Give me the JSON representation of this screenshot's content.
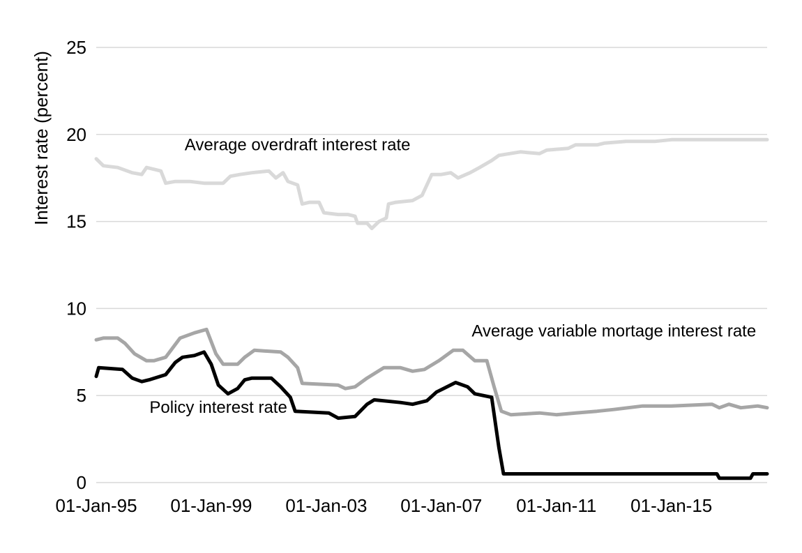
{
  "chart_data": {
    "type": "line",
    "ylabel": "Interest rate (percent)",
    "xlabel": "",
    "ylim": [
      0,
      25
    ],
    "yticks": [
      0,
      5,
      10,
      15,
      20,
      25
    ],
    "xlim": [
      "1995-01-01",
      "2018-05-01"
    ],
    "xticks": [
      {
        "date": "1995-01-01",
        "label": "01-Jan-95"
      },
      {
        "date": "1999-01-01",
        "label": "01-Jan-99"
      },
      {
        "date": "2003-01-01",
        "label": "01-Jan-03"
      },
      {
        "date": "2007-01-01",
        "label": "01-Jan-07"
      },
      {
        "date": "2011-01-01",
        "label": "01-Jan-11"
      },
      {
        "date": "2015-01-01",
        "label": "01-Jan-15"
      }
    ],
    "grid": true,
    "legend": "none",
    "series": [
      {
        "name": "Average overdraft interest rate",
        "color": "#d9d9d9",
        "points": [
          [
            "1995-01-01",
            18.6
          ],
          [
            "1995-04-01",
            18.2
          ],
          [
            "1995-10-01",
            18.1
          ],
          [
            "1996-04-01",
            17.8
          ],
          [
            "1996-08-01",
            17.7
          ],
          [
            "1996-10-01",
            18.1
          ],
          [
            "1997-01-01",
            18.0
          ],
          [
            "1997-04-01",
            17.9
          ],
          [
            "1997-06-01",
            17.2
          ],
          [
            "1997-10-01",
            17.3
          ],
          [
            "1998-04-01",
            17.3
          ],
          [
            "1998-10-01",
            17.2
          ],
          [
            "1999-06-01",
            17.2
          ],
          [
            "1999-09-01",
            17.6
          ],
          [
            "2000-01-01",
            17.7
          ],
          [
            "2000-06-01",
            17.8
          ],
          [
            "2001-01-01",
            17.9
          ],
          [
            "2001-04-01",
            17.5
          ],
          [
            "2001-07-01",
            17.8
          ],
          [
            "2001-09-01",
            17.3
          ],
          [
            "2002-01-01",
            17.1
          ],
          [
            "2002-03-01",
            16.0
          ],
          [
            "2002-06-01",
            16.1
          ],
          [
            "2002-10-01",
            16.1
          ],
          [
            "2002-12-01",
            15.5
          ],
          [
            "2003-06-01",
            15.4
          ],
          [
            "2003-10-01",
            15.4
          ],
          [
            "2004-01-01",
            15.3
          ],
          [
            "2004-02-01",
            14.9
          ],
          [
            "2004-06-01",
            14.9
          ],
          [
            "2004-08-01",
            14.6
          ],
          [
            "2004-11-01",
            15.0
          ],
          [
            "2005-02-01",
            15.2
          ],
          [
            "2005-03-01",
            16.0
          ],
          [
            "2005-06-01",
            16.1
          ],
          [
            "2006-01-01",
            16.2
          ],
          [
            "2006-05-01",
            16.5
          ],
          [
            "2006-09-01",
            17.7
          ],
          [
            "2007-01-01",
            17.7
          ],
          [
            "2007-05-01",
            17.8
          ],
          [
            "2007-08-01",
            17.5
          ],
          [
            "2008-01-01",
            17.8
          ],
          [
            "2008-05-01",
            18.1
          ],
          [
            "2008-10-01",
            18.5
          ],
          [
            "2009-01-01",
            18.8
          ],
          [
            "2009-10-01",
            19.0
          ],
          [
            "2010-06-01",
            18.9
          ],
          [
            "2010-09-01",
            19.1
          ],
          [
            "2011-06-01",
            19.2
          ],
          [
            "2011-09-01",
            19.4
          ],
          [
            "2012-06-01",
            19.4
          ],
          [
            "2012-09-01",
            19.5
          ],
          [
            "2013-06-01",
            19.6
          ],
          [
            "2014-01-01",
            19.6
          ],
          [
            "2014-06-01",
            19.6
          ],
          [
            "2015-01-01",
            19.7
          ],
          [
            "2016-06-01",
            19.7
          ],
          [
            "2018-05-01",
            19.7
          ]
        ]
      },
      {
        "name": "Average variable mortage interest rate",
        "color": "#a6a6a6",
        "points": [
          [
            "1995-01-01",
            8.2
          ],
          [
            "1995-04-01",
            8.3
          ],
          [
            "1995-10-01",
            8.3
          ],
          [
            "1996-01-01",
            8.0
          ],
          [
            "1996-05-01",
            7.4
          ],
          [
            "1996-10-01",
            7.0
          ],
          [
            "1997-01-01",
            7.0
          ],
          [
            "1997-06-01",
            7.2
          ],
          [
            "1997-12-01",
            8.3
          ],
          [
            "1998-06-01",
            8.6
          ],
          [
            "1998-11-01",
            8.8
          ],
          [
            "1999-03-01",
            7.4
          ],
          [
            "1999-06-01",
            6.8
          ],
          [
            "1999-12-01",
            6.8
          ],
          [
            "2000-03-01",
            7.2
          ],
          [
            "2000-07-01",
            7.6
          ],
          [
            "2001-06-01",
            7.5
          ],
          [
            "2001-09-01",
            7.2
          ],
          [
            "2002-01-01",
            6.6
          ],
          [
            "2002-03-01",
            5.7
          ],
          [
            "2003-06-01",
            5.6
          ],
          [
            "2003-09-01",
            5.4
          ],
          [
            "2004-01-01",
            5.5
          ],
          [
            "2004-06-01",
            6.0
          ],
          [
            "2005-01-01",
            6.6
          ],
          [
            "2005-08-01",
            6.6
          ],
          [
            "2006-01-01",
            6.4
          ],
          [
            "2006-06-01",
            6.5
          ],
          [
            "2006-12-01",
            7.0
          ],
          [
            "2007-06-01",
            7.6
          ],
          [
            "2007-10-01",
            7.6
          ],
          [
            "2008-03-01",
            7.0
          ],
          [
            "2008-08-01",
            7.0
          ],
          [
            "2008-11-01",
            5.5
          ],
          [
            "2009-02-01",
            4.1
          ],
          [
            "2009-06-01",
            3.9
          ],
          [
            "2010-06-01",
            4.0
          ],
          [
            "2011-01-01",
            3.9
          ],
          [
            "2011-09-01",
            4.0
          ],
          [
            "2012-06-01",
            4.1
          ],
          [
            "2013-01-01",
            4.2
          ],
          [
            "2014-01-01",
            4.4
          ],
          [
            "2015-01-01",
            4.4
          ],
          [
            "2016-06-01",
            4.5
          ],
          [
            "2016-09-01",
            4.3
          ],
          [
            "2017-01-01",
            4.5
          ],
          [
            "2017-06-01",
            4.3
          ],
          [
            "2018-01-01",
            4.4
          ],
          [
            "2018-05-01",
            4.3
          ]
        ]
      },
      {
        "name": "Policy interest rate",
        "color": "#000000",
        "points": [
          [
            "1995-01-01",
            6.1
          ],
          [
            "1995-02-01",
            6.6
          ],
          [
            "1995-12-01",
            6.5
          ],
          [
            "1996-04-01",
            6.0
          ],
          [
            "1996-08-01",
            5.8
          ],
          [
            "1996-11-01",
            5.9
          ],
          [
            "1997-06-01",
            6.2
          ],
          [
            "1997-10-01",
            6.9
          ],
          [
            "1998-01-01",
            7.2
          ],
          [
            "1998-06-01",
            7.3
          ],
          [
            "1998-10-01",
            7.5
          ],
          [
            "1999-01-01",
            6.8
          ],
          [
            "1999-04-01",
            5.6
          ],
          [
            "1999-08-01",
            5.1
          ],
          [
            "1999-12-01",
            5.4
          ],
          [
            "2000-03-01",
            5.9
          ],
          [
            "2000-06-01",
            6.0
          ],
          [
            "2001-02-01",
            6.0
          ],
          [
            "2001-06-01",
            5.5
          ],
          [
            "2001-10-01",
            4.9
          ],
          [
            "2001-12-01",
            4.1
          ],
          [
            "2003-02-01",
            4.0
          ],
          [
            "2003-06-01",
            3.7
          ],
          [
            "2004-01-01",
            3.8
          ],
          [
            "2004-06-01",
            4.5
          ],
          [
            "2004-09-01",
            4.75
          ],
          [
            "2005-08-01",
            4.6
          ],
          [
            "2006-01-01",
            4.5
          ],
          [
            "2006-07-01",
            4.7
          ],
          [
            "2006-11-01",
            5.2
          ],
          [
            "2007-07-01",
            5.75
          ],
          [
            "2007-12-01",
            5.5
          ],
          [
            "2008-03-01",
            5.1
          ],
          [
            "2008-10-01",
            4.9
          ],
          [
            "2009-01-01",
            2.0
          ],
          [
            "2009-03-01",
            0.5
          ],
          [
            "2016-08-01",
            0.5
          ],
          [
            "2016-09-01",
            0.25
          ],
          [
            "2017-10-01",
            0.25
          ],
          [
            "2017-11-01",
            0.5
          ],
          [
            "2018-05-01",
            0.5
          ]
        ]
      }
    ],
    "annotations": [
      {
        "text": "Average overdraft interest rate",
        "x": "2002-01-01",
        "y": 19.1
      },
      {
        "text": "Average variable mortage interest rate",
        "x": "2013-01-01",
        "y": 8.4
      },
      {
        "text": "Policy interest rate",
        "x": "1999-04-01",
        "y": 4.0
      }
    ]
  }
}
